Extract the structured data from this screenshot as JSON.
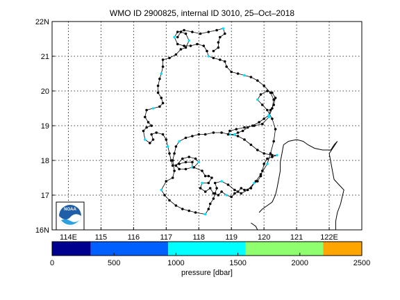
{
  "chart_data": {
    "type": "scatter",
    "title": "WMO ID 2900825, internal ID 3010, 25–Oct–2018",
    "xlim": [
      113.5,
      123.0
    ],
    "ylim": [
      16,
      22
    ],
    "grid": true,
    "x_ticks": [
      {
        "value": 114,
        "label": "114E"
      },
      {
        "value": 115,
        "label": "115"
      },
      {
        "value": 116,
        "label": "116"
      },
      {
        "value": 117,
        "label": "117"
      },
      {
        "value": 118,
        "label": "118"
      },
      {
        "value": 119,
        "label": "119"
      },
      {
        "value": 120,
        "label": "120"
      },
      {
        "value": 121,
        "label": "121"
      },
      {
        "value": 122,
        "label": "122E"
      }
    ],
    "y_ticks": [
      {
        "value": 16,
        "label": "16N"
      },
      {
        "value": 17,
        "label": "17"
      },
      {
        "value": 18,
        "label": "18"
      },
      {
        "value": 19,
        "label": "19"
      },
      {
        "value": 20,
        "label": "20"
      },
      {
        "value": 21,
        "label": "21"
      },
      {
        "value": 22,
        "label": "22N"
      }
    ],
    "track": [
      [
        117.35,
        21.55
      ],
      [
        117.45,
        21.7
      ],
      [
        117.6,
        21.65
      ],
      [
        117.7,
        21.45
      ],
      [
        117.6,
        21.25
      ],
      [
        117.45,
        21.2
      ],
      [
        117.3,
        21.05
      ],
      [
        117.1,
        20.95
      ],
      [
        116.9,
        20.9
      ],
      [
        116.9,
        20.7
      ],
      [
        116.85,
        20.5
      ],
      [
        116.8,
        20.35
      ],
      [
        116.75,
        20.15
      ],
      [
        116.75,
        19.95
      ],
      [
        116.85,
        19.8
      ],
      [
        116.9,
        19.65
      ],
      [
        116.8,
        19.55
      ],
      [
        116.6,
        19.5
      ],
      [
        116.4,
        19.45
      ],
      [
        116.35,
        19.25
      ],
      [
        116.45,
        19.1
      ],
      [
        116.55,
        19.0
      ],
      [
        116.4,
        18.95
      ],
      [
        116.3,
        18.85
      ],
      [
        116.35,
        18.6
      ],
      [
        116.5,
        18.5
      ],
      [
        116.6,
        18.6
      ],
      [
        116.55,
        18.75
      ],
      [
        116.7,
        18.8
      ],
      [
        116.9,
        18.75
      ],
      [
        117.0,
        18.6
      ],
      [
        117.05,
        18.4
      ],
      [
        117.1,
        18.2
      ],
      [
        117.15,
        18.0
      ],
      [
        117.2,
        17.85
      ],
      [
        117.4,
        17.9
      ],
      [
        117.6,
        17.95
      ],
      [
        117.8,
        17.95
      ],
      [
        117.8,
        17.8
      ],
      [
        117.6,
        17.75
      ],
      [
        117.4,
        17.75
      ],
      [
        117.3,
        17.85
      ],
      [
        117.5,
        18.05
      ],
      [
        117.7,
        18.1
      ],
      [
        117.9,
        18.05
      ],
      [
        118.0,
        17.95
      ],
      [
        117.85,
        17.8
      ],
      [
        118.1,
        17.7
      ],
      [
        118.2,
        17.55
      ],
      [
        118.3,
        17.55
      ],
      [
        118.4,
        17.5
      ],
      [
        118.3,
        17.35
      ],
      [
        118.1,
        17.35
      ],
      [
        118.05,
        17.2
      ],
      [
        118.2,
        17.1
      ],
      [
        118.35,
        17.2
      ],
      [
        118.45,
        17.05
      ],
      [
        118.6,
        17.0
      ],
      [
        118.7,
        17.1
      ],
      [
        118.85,
        17.0
      ],
      [
        119.0,
        16.95
      ],
      [
        119.1,
        17.05
      ],
      [
        119.2,
        17.1
      ],
      [
        119.3,
        17.2
      ],
      [
        119.4,
        17.15
      ],
      [
        119.6,
        17.2
      ],
      [
        119.7,
        17.35
      ],
      [
        119.8,
        17.4
      ],
      [
        119.9,
        17.55
      ],
      [
        119.95,
        17.7
      ],
      [
        120.0,
        17.9
      ],
      [
        120.1,
        18.05
      ],
      [
        120.25,
        18.1
      ],
      [
        120.4,
        18.15
      ],
      [
        120.25,
        18.15
      ],
      [
        120.0,
        18.2
      ],
      [
        119.8,
        18.3
      ],
      [
        119.6,
        18.45
      ],
      [
        119.4,
        18.6
      ],
      [
        119.2,
        18.7
      ],
      [
        118.95,
        18.75
      ],
      [
        118.7,
        18.8
      ],
      [
        118.45,
        18.8
      ],
      [
        118.2,
        18.75
      ],
      [
        118.0,
        18.75
      ],
      [
        117.8,
        18.7
      ],
      [
        117.6,
        18.65
      ],
      [
        117.4,
        18.55
      ],
      [
        117.3,
        18.4
      ],
      [
        117.25,
        18.2
      ],
      [
        117.2,
        18.0
      ],
      [
        117.25,
        17.7
      ],
      [
        117.2,
        17.5
      ],
      [
        117.0,
        17.4
      ],
      [
        116.85,
        17.15
      ],
      [
        116.95,
        17.0
      ],
      [
        117.1,
        16.85
      ],
      [
        117.3,
        16.7
      ],
      [
        117.5,
        16.6
      ],
      [
        117.7,
        16.55
      ],
      [
        117.9,
        16.5
      ],
      [
        118.2,
        16.45
      ],
      [
        118.3,
        16.6
      ],
      [
        118.35,
        16.75
      ],
      [
        118.45,
        16.9
      ],
      [
        118.5,
        17.05
      ],
      [
        118.55,
        17.2
      ],
      [
        118.5,
        17.35
      ],
      [
        118.7,
        17.4
      ],
      [
        118.9,
        17.3
      ],
      [
        119.1,
        17.15
      ],
      [
        119.3,
        17.05
      ],
      [
        119.5,
        17.15
      ],
      [
        119.75,
        17.4
      ],
      [
        119.9,
        17.6
      ],
      [
        120.1,
        17.9
      ],
      [
        120.2,
        18.2
      ],
      [
        120.3,
        18.55
      ],
      [
        120.35,
        18.9
      ],
      [
        120.25,
        19.2
      ],
      [
        120.1,
        19.45
      ],
      [
        119.95,
        19.6
      ],
      [
        119.8,
        19.75
      ],
      [
        119.9,
        19.9
      ],
      [
        120.1,
        20.0
      ],
      [
        120.25,
        19.95
      ],
      [
        120.35,
        19.8
      ],
      [
        120.3,
        19.6
      ],
      [
        120.2,
        19.45
      ],
      [
        120.15,
        19.3
      ],
      [
        120.0,
        19.2
      ],
      [
        119.85,
        19.1
      ],
      [
        119.65,
        19.0
      ],
      [
        119.5,
        18.95
      ],
      [
        119.35,
        18.85
      ],
      [
        119.2,
        18.8
      ],
      [
        119.1,
        18.75
      ],
      [
        118.9,
        18.75
      ],
      [
        118.95,
        18.85
      ],
      [
        119.15,
        18.9
      ],
      [
        119.4,
        18.95
      ],
      [
        119.7,
        19.0
      ],
      [
        119.95,
        19.05
      ],
      [
        120.15,
        19.25
      ],
      [
        120.25,
        19.5
      ],
      [
        120.3,
        19.75
      ],
      [
        120.2,
        19.95
      ],
      [
        120.0,
        20.15
      ],
      [
        119.8,
        20.3
      ],
      [
        119.6,
        20.4
      ],
      [
        119.4,
        20.45
      ],
      [
        119.2,
        20.5
      ],
      [
        119.0,
        20.55
      ],
      [
        118.85,
        20.7
      ],
      [
        118.8,
        20.85
      ],
      [
        118.65,
        20.9
      ],
      [
        118.45,
        20.95
      ],
      [
        118.3,
        21.0
      ],
      [
        118.25,
        21.15
      ],
      [
        118.15,
        21.3
      ],
      [
        117.95,
        21.35
      ],
      [
        117.75,
        21.3
      ],
      [
        117.55,
        21.3
      ],
      [
        117.35,
        21.35
      ],
      [
        117.25,
        21.55
      ],
      [
        117.35,
        21.7
      ],
      [
        117.55,
        21.75
      ],
      [
        117.8,
        21.7
      ],
      [
        118.05,
        21.65
      ],
      [
        118.3,
        21.7
      ],
      [
        118.55,
        21.75
      ],
      [
        118.75,
        21.8
      ],
      [
        118.8,
        21.65
      ],
      [
        118.65,
        21.55
      ],
      [
        118.6,
        21.4
      ],
      [
        118.6,
        21.25
      ],
      [
        118.45,
        21.15
      ]
    ],
    "coastline": [
      [
        119.85,
        16.5
      ],
      [
        119.95,
        16.6
      ],
      [
        120.1,
        16.7
      ],
      [
        120.25,
        16.8
      ],
      [
        120.35,
        17.0
      ],
      [
        120.4,
        17.2
      ],
      [
        120.45,
        17.45
      ],
      [
        120.5,
        17.7
      ],
      [
        120.5,
        17.95
      ],
      [
        120.55,
        18.2
      ],
      [
        120.6,
        18.45
      ],
      [
        120.75,
        18.55
      ],
      [
        121.0,
        18.6
      ],
      [
        121.2,
        18.55
      ],
      [
        121.35,
        18.45
      ],
      [
        121.55,
        18.35
      ],
      [
        121.8,
        18.3
      ],
      [
        122.05,
        18.3
      ],
      [
        122.15,
        18.45
      ],
      [
        122.25,
        18.55
      ],
      [
        122.0,
        18.2
      ],
      [
        122.05,
        17.95
      ],
      [
        122.1,
        17.7
      ],
      [
        122.15,
        17.45
      ],
      [
        122.3,
        17.3
      ],
      [
        122.45,
        17.15
      ],
      [
        122.4,
        16.95
      ],
      [
        122.35,
        16.75
      ],
      [
        122.25,
        16.5
      ],
      [
        122.2,
        16.25
      ],
      [
        122.2,
        16.0
      ]
    ],
    "coastline_south": [
      [
        119.6,
        16.2
      ],
      [
        119.75,
        16.1
      ],
      [
        119.8,
        16.0
      ]
    ],
    "colorbar": {
      "label": "pressure [dbar]",
      "range": [
        0,
        2500
      ],
      "ticks": [
        0,
        500,
        1000,
        1500,
        2000,
        2500
      ],
      "bands": [
        {
          "from": 0,
          "to": 312.5,
          "color": "#00008f"
        },
        {
          "from": 312.5,
          "to": 937.5,
          "color": "#0060ff"
        },
        {
          "from": 937.5,
          "to": 1562.5,
          "color": "#00ffff"
        },
        {
          "from": 1562.5,
          "to": 2187.5,
          "color": "#8fff6f"
        },
        {
          "from": 2187.5,
          "to": 2500,
          "color": "#ffa500"
        }
      ]
    },
    "colors": {
      "track": "#000000",
      "marker_highlight": "#00e5ff",
      "marker": "#000000"
    }
  },
  "logo": {
    "text": "NOAA"
  }
}
